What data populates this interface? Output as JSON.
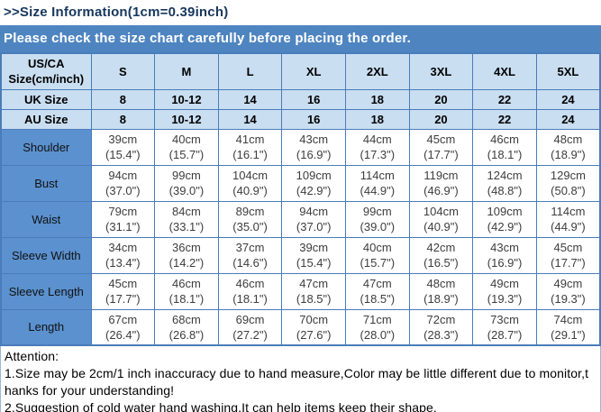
{
  "page": {
    "title": ">>Size Information(1cm=0.39inch)",
    "banner": "Please check the size chart carefully before placing the order."
  },
  "colors": {
    "title_text": "#17375e",
    "banner_bg": "#4e85c1",
    "banner_text": "#ffffff",
    "header_cell_bg": "#c9def1",
    "row_label_bg": "#5b91ce",
    "table_border": "#4a7cba",
    "data_text": "#3d3d3d"
  },
  "size_chart": {
    "corner_header_line1": "US/CA",
    "corner_header_line2": "Size(cm/inch)",
    "size_columns": [
      "S",
      "M",
      "L",
      "XL",
      "2XL",
      "3XL",
      "4XL",
      "5XL"
    ],
    "size_rows": [
      {
        "label": "UK Size",
        "values": [
          "8",
          "10-12",
          "14",
          "16",
          "18",
          "20",
          "22",
          "24"
        ]
      },
      {
        "label": "AU Size",
        "values": [
          "8",
          "10-12",
          "14",
          "16",
          "18",
          "20",
          "22",
          "24"
        ]
      }
    ],
    "measure_rows": [
      {
        "label": "Shoulder",
        "cm": [
          "39cm",
          "40cm",
          "41cm",
          "43cm",
          "44cm",
          "45cm",
          "46cm",
          "48cm"
        ],
        "inch": [
          "(15.4\")",
          "(15.7\")",
          "(16.1\")",
          "(16.9\")",
          "(17.3\")",
          "(17.7\")",
          "(18.1\")",
          "(18.9\")"
        ]
      },
      {
        "label": "Bust",
        "cm": [
          "94cm",
          "99cm",
          "104cm",
          "109cm",
          "114cm",
          "119cm",
          "124cm",
          "129cm"
        ],
        "inch": [
          "(37.0\")",
          "(39.0\")",
          "(40.9\")",
          "(42.9\")",
          "(44.9\")",
          "(46.9\")",
          "(48.8\")",
          "(50.8\")"
        ]
      },
      {
        "label": "Waist",
        "cm": [
          "79cm",
          "84cm",
          "89cm",
          "94cm",
          "99cm",
          "104cm",
          "109cm",
          "114cm"
        ],
        "inch": [
          "(31.1\")",
          "(33.1\")",
          "(35.0\")",
          "(37.0\")",
          "(39.0\")",
          "(40.9\")",
          "(42.9\")",
          "(44.9\")"
        ]
      },
      {
        "label": "Sleeve Width",
        "cm": [
          "34cm",
          "36cm",
          "37cm",
          "39cm",
          "40cm",
          "42cm",
          "43cm",
          "45cm"
        ],
        "inch": [
          "(13.4\")",
          "(14.2\")",
          "(14.6\")",
          "(15.4\")",
          "(15.7\")",
          "(16.5\")",
          "(16.9\")",
          "(17.7\")"
        ]
      },
      {
        "label": "Sleeve Length",
        "cm": [
          "45cm",
          "46cm",
          "46cm",
          "47cm",
          "47cm",
          "48cm",
          "49cm",
          "49cm"
        ],
        "inch": [
          "(17.7\")",
          "(18.1\")",
          "(18.1\")",
          "(18.5\")",
          "(18.5\")",
          "(18.9\")",
          "(19.3\")",
          "(19.3\")"
        ]
      },
      {
        "label": "Length",
        "cm": [
          "67cm",
          "68cm",
          "69cm",
          "70cm",
          "71cm",
          "72cm",
          "73cm",
          "74cm"
        ],
        "inch": [
          "(26.4\")",
          "(26.8\")",
          "(27.2\")",
          "(27.6\")",
          "(28.0\")",
          "(28.3\")",
          "(28.7\")",
          "(29.1\")"
        ]
      }
    ]
  },
  "attention": {
    "heading": "Attention:",
    "note1_line1": "1.Size may be 2cm/1 inch inaccuracy due to hand measure,Color may be little different due to monitor,t",
    "note1_line2": "hanks for your understanding!",
    "note2": "2.Suggestion of cold water hand washing.It can help items keep their shape."
  }
}
